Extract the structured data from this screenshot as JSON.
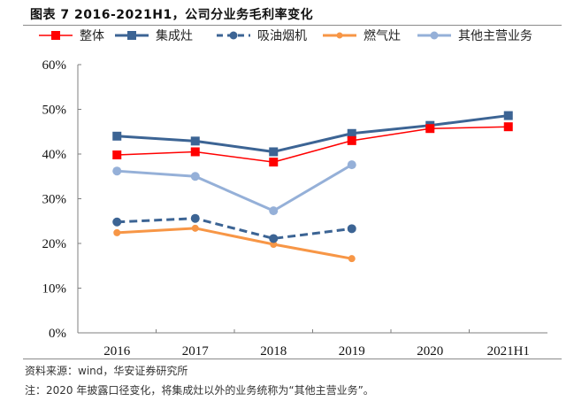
{
  "title": "图表 7 2016-2021H1，公司分业务毛利率变化",
  "footer": {
    "source": "资料来源：wind，华安证券研究所",
    "note": "注：2020 年披露口径变化，将集成灶以外的业务统称为“其他主营业务”。"
  },
  "chart_data": {
    "type": "line",
    "title": "2016-2021H1，公司分业务毛利率变化",
    "xlabel": "",
    "ylabel": "",
    "categories": [
      "2016",
      "2017",
      "2018",
      "2019",
      "2020",
      "2021H1"
    ],
    "ylim": [
      0,
      60
    ],
    "yticks": [
      0,
      10,
      20,
      30,
      40,
      50,
      60
    ],
    "ytick_labels": [
      "0%",
      "10%",
      "20%",
      "30%",
      "40%",
      "50%",
      "60%"
    ],
    "grid": false,
    "legend_position": "top",
    "series": [
      {
        "name": "整体",
        "color": "#ff0000",
        "marker": "square",
        "dash": false,
        "width": 1.5,
        "values": [
          39.8,
          40.5,
          38.2,
          43.0,
          45.7,
          46.1
        ]
      },
      {
        "name": "集成灶",
        "color": "#3c6494",
        "marker": "square",
        "dash": false,
        "width": 3,
        "values": [
          44.0,
          42.9,
          40.5,
          44.6,
          46.4,
          48.6
        ]
      },
      {
        "name": "吸油烟机",
        "color": "#3c6494",
        "marker": "circle",
        "dash": true,
        "width": 3,
        "values": [
          24.8,
          25.6,
          21.1,
          23.3,
          null,
          null
        ]
      },
      {
        "name": "燃气灶",
        "color": "#f79646",
        "marker": "circle",
        "dash": false,
        "width": 3,
        "values": [
          22.4,
          23.4,
          19.8,
          16.6,
          null,
          null
        ]
      },
      {
        "name": "其他主营业务",
        "color": "#95b0d8",
        "marker": "circle",
        "dash": false,
        "width": 3,
        "values": [
          36.2,
          35.0,
          27.3,
          37.6,
          null,
          null
        ]
      }
    ]
  }
}
